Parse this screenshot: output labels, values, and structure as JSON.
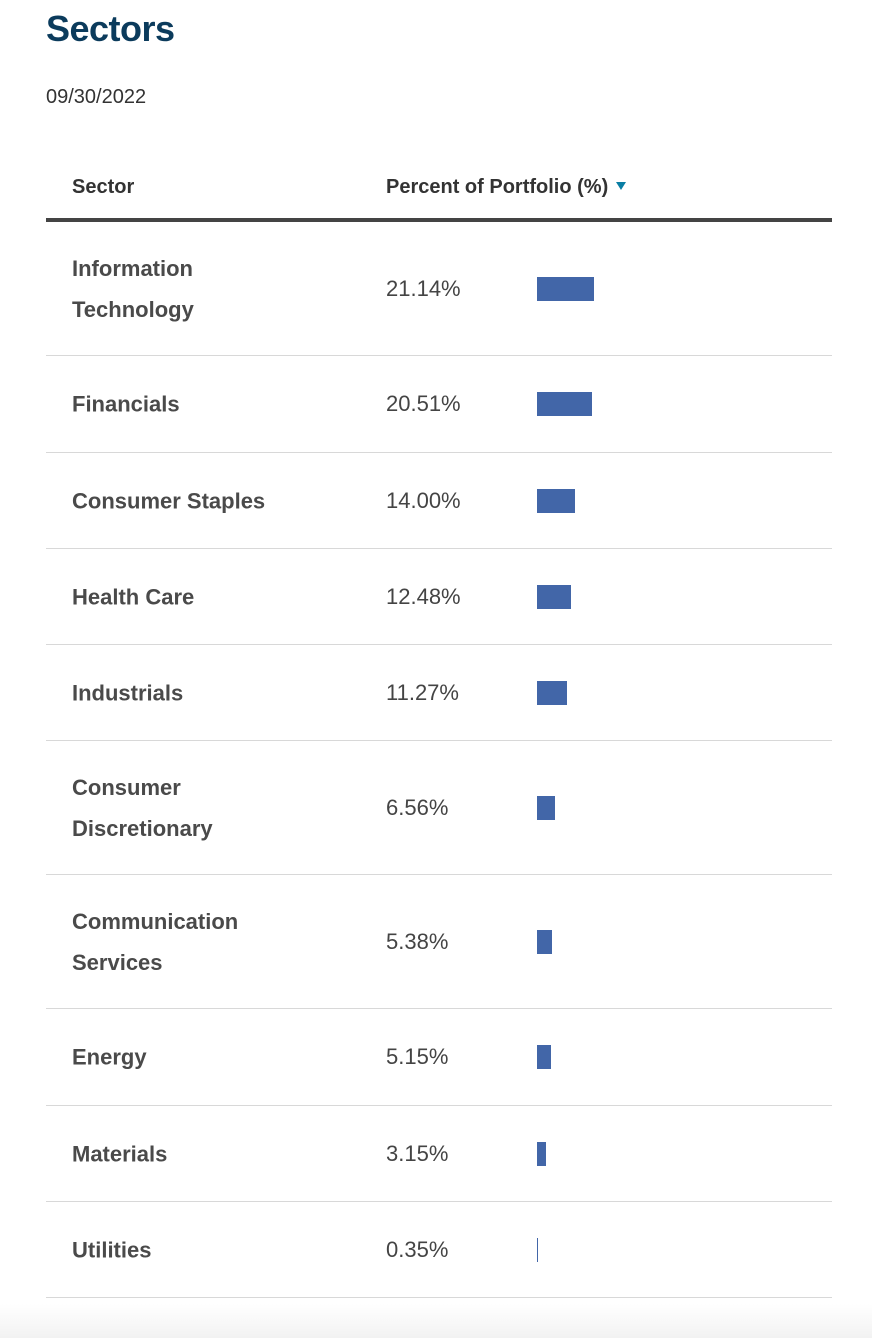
{
  "page": {
    "title": "Sectors",
    "as_of_date": "09/30/2022"
  },
  "table": {
    "columns": {
      "sector": "Sector",
      "percent": "Percent of Portfolio (%)"
    },
    "sort": "descending",
    "bar_color": "#4266a8",
    "rows": [
      {
        "sector": "Information Technology",
        "percent_label": "21.14%",
        "value": 21.14
      },
      {
        "sector": "Financials",
        "percent_label": "20.51%",
        "value": 20.51
      },
      {
        "sector": "Consumer Staples",
        "percent_label": "14.00%",
        "value": 14.0
      },
      {
        "sector": "Health Care",
        "percent_label": "12.48%",
        "value": 12.48
      },
      {
        "sector": "Industrials",
        "percent_label": "11.27%",
        "value": 11.27
      },
      {
        "sector": "Consumer Discretionary",
        "percent_label": "6.56%",
        "value": 6.56
      },
      {
        "sector": "Communication Services",
        "percent_label": "5.38%",
        "value": 5.38
      },
      {
        "sector": "Energy",
        "percent_label": "5.15%",
        "value": 5.15
      },
      {
        "sector": "Materials",
        "percent_label": "3.15%",
        "value": 3.15
      },
      {
        "sector": "Utilities",
        "percent_label": "0.35%",
        "value": 0.35
      }
    ]
  }
}
